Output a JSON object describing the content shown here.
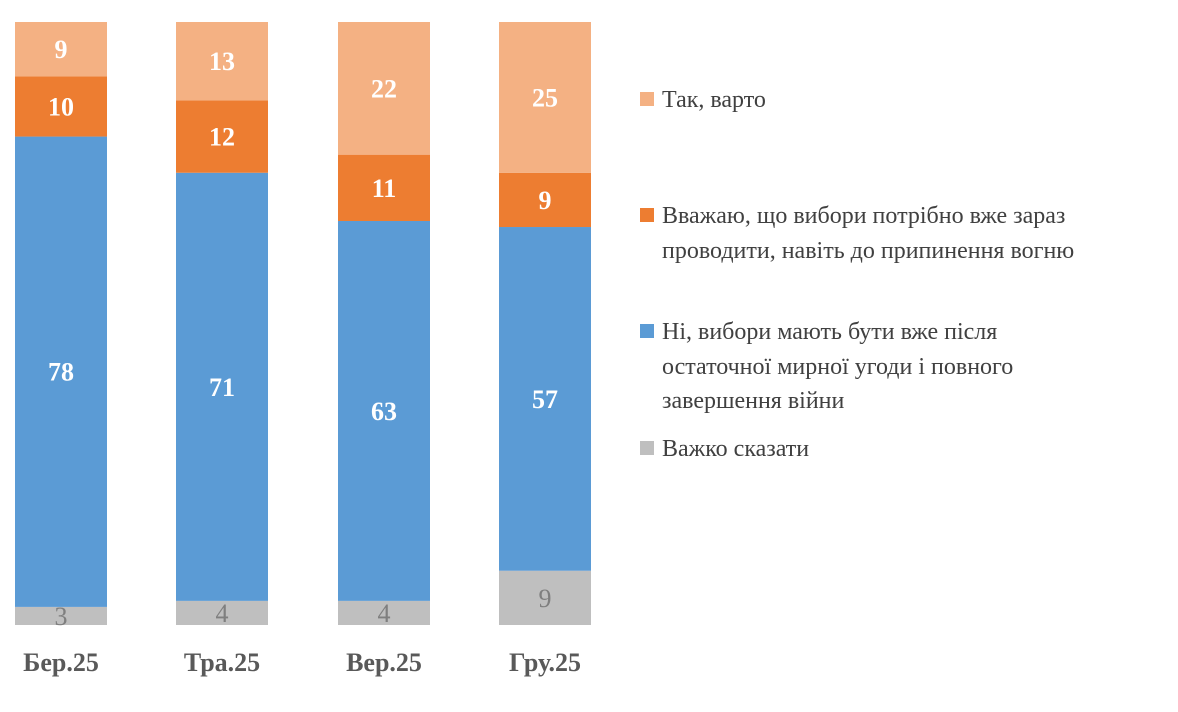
{
  "chart_data": {
    "type": "bar",
    "stacked": true,
    "categories": [
      "Бер.25",
      "Тра.25",
      "Вер.25",
      "Гру.25"
    ],
    "series": [
      {
        "name": "Важко сказати",
        "color": "#BFBFBF",
        "label_color": "#7F7F7F",
        "values": [
          3,
          4,
          4,
          9
        ]
      },
      {
        "name": "Ні, вибори мають бути вже після остаточної мирної угоди і повного завершення війни",
        "color": "#5B9BD5",
        "label_color": "#FFFFFF",
        "values": [
          78,
          71,
          63,
          57
        ]
      },
      {
        "name": "Вважаю, що вибори потрібно вже зараз проводити, навіть до припинення вогню",
        "color": "#ED7D31",
        "label_color": "#FFFFFF",
        "values": [
          10,
          12,
          11,
          9
        ]
      },
      {
        "name": "Так, варто",
        "color": "#F4B183",
        "label_color": "#FFFFFF",
        "values": [
          9,
          13,
          22,
          25
        ]
      }
    ],
    "ylim": [
      0,
      100
    ],
    "grid": false,
    "legend_position": "right",
    "data_labels": true
  },
  "legend": [
    {
      "label": "Так, варто",
      "color": "#F4B183"
    },
    {
      "label": "Вважаю, що вибори потрібно вже зараз\nпроводити, навіть до припинення вогню",
      "color": "#ED7D31"
    },
    {
      "label": "Ні, вибори мають бути вже після\nостаточної мирної угоди і повного\nзавершення війни",
      "color": "#5B9BD5"
    },
    {
      "label": "Важко сказати",
      "color": "#BFBFBF"
    }
  ]
}
